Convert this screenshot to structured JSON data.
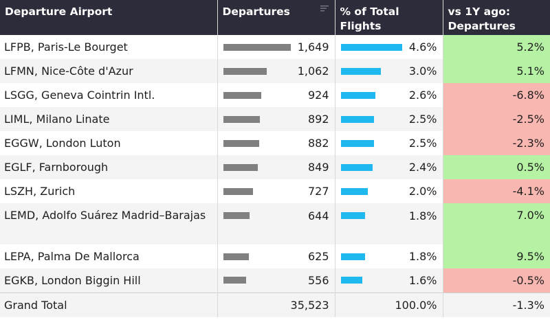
{
  "headers": {
    "airport": "Departure Airport",
    "departures": "Departures",
    "pct": "% of Total Flights",
    "yoy": "vs 1Y ago: Departures"
  },
  "rows": [
    {
      "airport": "LFPB, Paris-Le Bourget",
      "departures": "1,649",
      "dep_value": 1649,
      "pct": "4.6%",
      "pct_value": 4.6,
      "yoy": "5.2%",
      "yoy_sign": "pos"
    },
    {
      "airport": "LFMN, Nice-Côte d'Azur",
      "departures": "1,062",
      "dep_value": 1062,
      "pct": "3.0%",
      "pct_value": 3.0,
      "yoy": "5.1%",
      "yoy_sign": "pos"
    },
    {
      "airport": "LSGG, Geneva Cointrin Intl.",
      "departures": "924",
      "dep_value": 924,
      "pct": "2.6%",
      "pct_value": 2.6,
      "yoy": "-6.8%",
      "yoy_sign": "neg"
    },
    {
      "airport": "LIML, Milano Linate",
      "departures": "892",
      "dep_value": 892,
      "pct": "2.5%",
      "pct_value": 2.5,
      "yoy": "-2.5%",
      "yoy_sign": "neg"
    },
    {
      "airport": "EGGW, London Luton",
      "departures": "882",
      "dep_value": 882,
      "pct": "2.5%",
      "pct_value": 2.5,
      "yoy": "-2.3%",
      "yoy_sign": "neg"
    },
    {
      "airport": "EGLF, Farnborough",
      "departures": "849",
      "dep_value": 849,
      "pct": "2.4%",
      "pct_value": 2.4,
      "yoy": "0.5%",
      "yoy_sign": "pos"
    },
    {
      "airport": "LSZH, Zurich",
      "departures": "727",
      "dep_value": 727,
      "pct": "2.0%",
      "pct_value": 2.0,
      "yoy": "-4.1%",
      "yoy_sign": "neg"
    },
    {
      "airport": "LEMD, Adolfo Suárez Madrid–Barajas",
      "departures": "644",
      "dep_value": 644,
      "pct": "1.8%",
      "pct_value": 1.8,
      "yoy": "7.0%",
      "yoy_sign": "pos",
      "tall": true
    },
    {
      "airport": "LEPA, Palma De Mallorca",
      "departures": "625",
      "dep_value": 625,
      "pct": "1.8%",
      "pct_value": 1.8,
      "yoy": "9.5%",
      "yoy_sign": "pos"
    },
    {
      "airport": "EGKB, London Biggin Hill",
      "departures": "556",
      "dep_value": 556,
      "pct": "1.6%",
      "pct_value": 1.6,
      "yoy": "-0.5%",
      "yoy_sign": "neg"
    }
  ],
  "total": {
    "label": "Grand Total",
    "departures": "35,523",
    "pct": "100.0%",
    "yoy": "-1.3%"
  },
  "colors": {
    "header_bg": "#2d2c3a",
    "bar_departures": "#808080",
    "bar_pct": "#1fb8ef",
    "positive_bg": "#b6f2a4",
    "negative_bg": "#f9b7b1"
  },
  "icons": {
    "sort": "sort-descending-icon"
  }
}
